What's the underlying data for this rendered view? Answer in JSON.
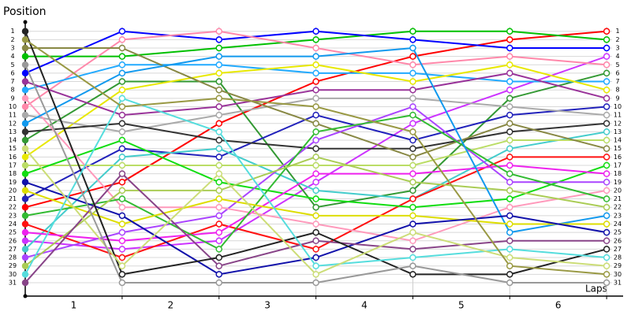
{
  "chart_data": {
    "type": "line",
    "y_axis_label": "Position",
    "x_axis_label": "Laps",
    "x": [
      0,
      1,
      2,
      3,
      4,
      5,
      6
    ],
    "xlim": [
      0,
      6.17
    ],
    "xticks": [
      1,
      2,
      3,
      4,
      5,
      6
    ],
    "ylim": [
      32.6,
      -0.1
    ],
    "yticks": [
      1,
      2,
      3,
      4,
      5,
      6,
      7,
      8,
      9,
      10,
      11,
      12,
      13,
      14,
      15,
      16,
      17,
      18,
      19,
      20,
      21,
      22,
      23,
      24,
      25,
      26,
      27,
      28,
      29,
      30,
      31
    ],
    "grid": true,
    "series": [
      {
        "color": "#ff0000",
        "values": [
          22,
          19,
          12,
          7,
          4,
          2,
          1
        ]
      },
      {
        "color": "#00c000",
        "values": [
          4,
          4,
          3,
          2,
          1,
          1,
          2
        ]
      },
      {
        "color": "#0000ff",
        "values": [
          6,
          1,
          2,
          1,
          2,
          3,
          3
        ]
      },
      {
        "color": "#cc33ff",
        "values": [
          26,
          27,
          26,
          19,
          12,
          8,
          4
        ]
      },
      {
        "color": "#ff88aa",
        "values": [
          10,
          2,
          1,
          3,
          5,
          4,
          5
        ]
      },
      {
        "color": "#339933",
        "values": [
          14,
          7,
          7,
          22,
          20,
          9,
          6
        ]
      },
      {
        "color": "#22aaff",
        "values": [
          8,
          5,
          5,
          6,
          6,
          7,
          7
        ]
      },
      {
        "color": "#e8e800",
        "values": [
          16,
          8,
          6,
          5,
          7,
          5,
          8
        ]
      },
      {
        "color": "#993399",
        "values": [
          7,
          11,
          10,
          8,
          8,
          6,
          9
        ]
      },
      {
        "color": "#2222bb",
        "values": [
          21,
          15,
          16,
          11,
          14,
          11,
          10
        ]
      },
      {
        "color": "#aaaaaa",
        "values": [
          11,
          13,
          11,
          9,
          9,
          10,
          11
        ]
      },
      {
        "color": "#333333",
        "values": [
          13,
          12,
          14,
          15,
          15,
          13,
          12
        ]
      },
      {
        "color": "#44cccc",
        "values": [
          27,
          16,
          15,
          20,
          21,
          15,
          13
        ]
      },
      {
        "color": "#bbdd66",
        "values": [
          17,
          17,
          17,
          17,
          17,
          14,
          14
        ]
      },
      {
        "color": "#888844",
        "values": [
          3,
          3,
          8,
          12,
          16,
          12,
          15
        ]
      },
      {
        "color": "#ff1111",
        "values": [
          24,
          28,
          24,
          27,
          21,
          16,
          16
        ]
      },
      {
        "color": "#11dd11",
        "values": [
          18,
          14,
          19,
          21,
          22,
          21,
          17
        ]
      },
      {
        "color": "#ee22ee",
        "values": [
          25,
          26,
          25,
          18,
          18,
          17,
          18
        ]
      },
      {
        "color": "#aa44ff",
        "values": [
          28,
          25,
          23,
          14,
          10,
          19,
          19
        ]
      },
      {
        "color": "#ff99bb",
        "values": [
          9,
          22,
          22,
          24,
          26,
          22,
          20
        ]
      },
      {
        "color": "#33bb33",
        "values": [
          23,
          21,
          27,
          13,
          11,
          18,
          21
        ]
      },
      {
        "color": "#aacc55",
        "values": [
          29,
          20,
          20,
          16,
          19,
          20,
          22
        ]
      },
      {
        "color": "#1199ee",
        "values": [
          12,
          6,
          4,
          4,
          3,
          25,
          23
        ]
      },
      {
        "color": "#dddd00",
        "values": [
          20,
          24,
          21,
          23,
          23,
          24,
          24
        ]
      },
      {
        "color": "#1111aa",
        "values": [
          19,
          23,
          30,
          28,
          24,
          23,
          25
        ]
      },
      {
        "color": "#884488",
        "values": [
          31,
          18,
          29,
          26,
          27,
          26,
          26
        ]
      },
      {
        "color": "#222222",
        "values": [
          1,
          30,
          28,
          25,
          30,
          30,
          27
        ]
      },
      {
        "color": "#55dddd",
        "values": [
          30,
          9,
          13,
          29,
          28,
          27,
          28
        ]
      },
      {
        "color": "#ccdd77",
        "values": [
          15,
          29,
          18,
          30,
          25,
          28,
          29
        ]
      },
      {
        "color": "#999944",
        "values": [
          2,
          10,
          9,
          10,
          13,
          29,
          30
        ]
      },
      {
        "color": "#999999",
        "values": [
          5,
          31,
          31,
          31,
          29,
          31,
          31
        ]
      }
    ]
  }
}
